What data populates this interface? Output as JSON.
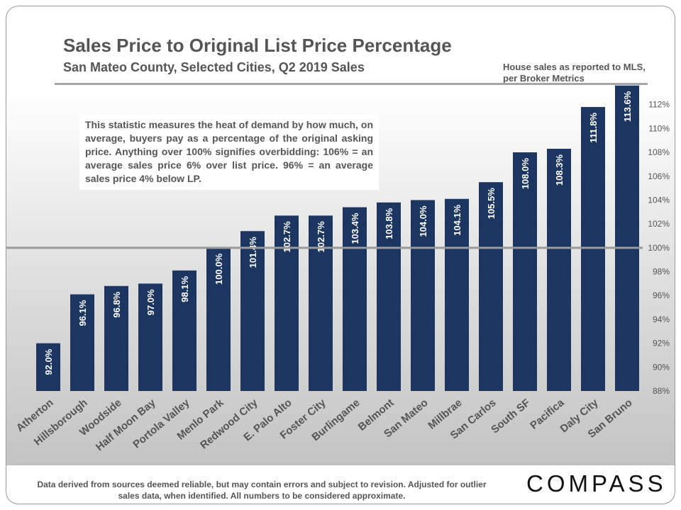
{
  "header": {
    "title": "Sales Price to Original List Price Percentage",
    "subtitle": "San Mateo County, Selected Cities,  Q2 2019 Sales",
    "source_note": "House sales as reported to MLS, per Broker Metrics"
  },
  "note": "This statistic measures the heat of demand by how much, on average, buyers pay as a percentage of the original asking price. Anything over 100% signifies overbidding:  106% = an average sales price 6% over list price. 96% = an average sales price 4% below LP.",
  "footer": {
    "disclaimer": "Data derived from sources deemed reliable, but may contain errors and subject to revision. Adjusted for outlier sales data, when identified. All numbers to be considered approximate.",
    "logo_text": "COMPASS"
  },
  "colors": {
    "bar": "#1c3661",
    "reference_line": "#9a9a9a",
    "axis_text": "#555555"
  },
  "chart_data": {
    "type": "bar",
    "categories": [
      "Atherton",
      "Hillsborough",
      "Woodside",
      "Half Moon Bay",
      "Portola Valley",
      "Menlo Park",
      "Redwood City",
      "E. Palo Alto",
      "Foster City",
      "Burlingame",
      "Belmont",
      "San Mateo",
      "Millbrae",
      "San Carlos",
      "South SF",
      "Pacifica",
      "Daly City",
      "San Bruno"
    ],
    "values": [
      92.0,
      96.1,
      96.8,
      97.0,
      98.1,
      100.0,
      101.4,
      102.7,
      102.7,
      103.4,
      103.8,
      104.0,
      104.1,
      105.5,
      108.0,
      108.3,
      111.8,
      113.6
    ],
    "value_labels": [
      "92.0%",
      "96.1%",
      "96.8%",
      "97.0%",
      "98.1%",
      "100.0%",
      "101.4%",
      "102.7%",
      "102.7%",
      "103.4%",
      "103.8%",
      "104.0%",
      "104.1%",
      "105.5%",
      "108.0%",
      "108.3%",
      "111.8%",
      "113.6%"
    ],
    "ylim": [
      88,
      114
    ],
    "yticks": [
      88,
      90,
      92,
      94,
      96,
      98,
      100,
      102,
      104,
      106,
      108,
      110,
      112
    ],
    "ytick_labels": [
      "88%",
      "90%",
      "92%",
      "94%",
      "96%",
      "98%",
      "100%",
      "102%",
      "104%",
      "106%",
      "108%",
      "110%",
      "112%"
    ],
    "y_axis_side": "right",
    "reference_line": 100,
    "xlabel": "",
    "ylabel": "",
    "grid": false,
    "legend": "none"
  }
}
